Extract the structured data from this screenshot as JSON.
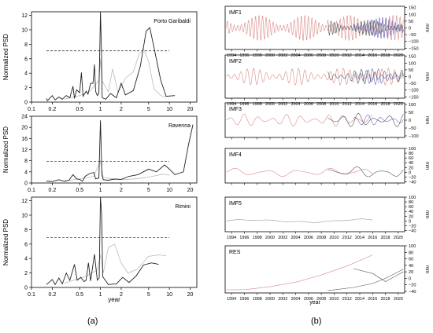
{
  "labels": {
    "a": "(a)",
    "b": "(b)"
  },
  "left": {
    "xlabel": "year",
    "ylabel": "Normalized PSD",
    "x_tick_labels": [
      "0.1",
      "0.2",
      "0.5",
      "1",
      "2",
      "5",
      "10",
      "20"
    ],
    "x_tick_values": [
      0.1,
      0.2,
      0.5,
      1,
      2,
      5,
      10,
      20
    ],
    "xlim": [
      0.1,
      25
    ],
    "panels": [
      {
        "site": "Porto Garibaldi",
        "ylim": [
          0,
          12.5
        ],
        "y_tick_values": [
          0,
          2,
          4,
          6,
          8,
          10,
          12
        ],
        "y_tick_labels": [
          "0",
          "2",
          "4",
          "6",
          "8",
          "10",
          "12"
        ],
        "threshold": 7.1,
        "dark": [
          [
            0.165,
            0.5
          ],
          [
            0.17,
            0.2
          ],
          [
            0.2,
            0.9
          ],
          [
            0.22,
            0.3
          ],
          [
            0.25,
            0.7
          ],
          [
            0.28,
            0.4
          ],
          [
            0.32,
            0.9
          ],
          [
            0.36,
            0.6
          ],
          [
            0.4,
            2.2
          ],
          [
            0.42,
            0.5
          ],
          [
            0.45,
            1.7
          ],
          [
            0.5,
            1.3
          ],
          [
            0.53,
            4.1
          ],
          [
            0.56,
            0.8
          ],
          [
            0.62,
            1.5
          ],
          [
            0.66,
            1.1
          ],
          [
            0.72,
            2.6
          ],
          [
            0.78,
            2.6
          ],
          [
            0.82,
            5.2
          ],
          [
            0.85,
            1.5
          ],
          [
            0.9,
            0.9
          ],
          [
            0.95,
            1.2
          ],
          [
            0.98,
            7.5
          ],
          [
            1.0,
            12.5
          ],
          [
            1.03,
            8.0
          ],
          [
            1.06,
            0.6
          ],
          [
            1.2,
            0.4
          ],
          [
            1.4,
            1.2
          ],
          [
            1.7,
            0.6
          ],
          [
            2.0,
            2.6
          ],
          [
            2.3,
            1.0
          ],
          [
            3.0,
            1.6
          ],
          [
            3.8,
            5.0
          ],
          [
            4.6,
            9.8
          ],
          [
            5.2,
            10.3
          ],
          [
            6.0,
            7.5
          ],
          [
            7.5,
            3.0
          ],
          [
            9.0,
            0.8
          ],
          [
            12,
            0.9
          ]
        ],
        "light": [
          [
            0.3,
            0.4
          ],
          [
            0.5,
            0.9
          ],
          [
            0.7,
            1.5
          ],
          [
            0.95,
            3.0
          ],
          [
            1.0,
            6.0
          ],
          [
            1.05,
            3.0
          ],
          [
            1.3,
            1.4
          ],
          [
            1.5,
            4.6
          ],
          [
            1.8,
            1.3
          ],
          [
            2.3,
            3.3
          ],
          [
            3.0,
            4.2
          ],
          [
            3.6,
            6.5
          ],
          [
            4.2,
            7.4
          ],
          [
            5.0,
            5.6
          ],
          [
            6.0,
            1.8
          ],
          [
            7.5,
            0.9
          ],
          [
            9.0,
            0.7
          ]
        ]
      },
      {
        "site": "Ravenna",
        "ylim": [
          0,
          24
        ],
        "y_tick_values": [
          0,
          4,
          8,
          12,
          16,
          20,
          24
        ],
        "y_tick_labels": [
          "0",
          "4",
          "8",
          "12",
          "16",
          "20",
          "24"
        ],
        "threshold": 7.8,
        "dark": [
          [
            0.165,
            0.7
          ],
          [
            0.2,
            0.5
          ],
          [
            0.25,
            1.2
          ],
          [
            0.3,
            0.6
          ],
          [
            0.35,
            1.0
          ],
          [
            0.4,
            3.0
          ],
          [
            0.45,
            1.5
          ],
          [
            0.5,
            1.3
          ],
          [
            0.55,
            0.6
          ],
          [
            0.6,
            2.4
          ],
          [
            0.7,
            3.4
          ],
          [
            0.8,
            3.8
          ],
          [
            0.85,
            1.5
          ],
          [
            0.95,
            1.8
          ],
          [
            1.0,
            22.5
          ],
          [
            1.05,
            3.0
          ],
          [
            1.1,
            1.2
          ],
          [
            1.3,
            1.0
          ],
          [
            1.6,
            1.4
          ],
          [
            2.0,
            1.3
          ],
          [
            2.6,
            2.4
          ],
          [
            3.5,
            3.0
          ],
          [
            5.0,
            5.0
          ],
          [
            6.5,
            4.0
          ],
          [
            8.5,
            6.5
          ],
          [
            10,
            5.0
          ],
          [
            12,
            3.0
          ],
          [
            16,
            4.0
          ],
          [
            19,
            14
          ],
          [
            22,
            21
          ]
        ],
        "light": [
          [
            0.3,
            0.8
          ],
          [
            0.5,
            1.4
          ],
          [
            0.8,
            2.4
          ],
          [
            1.0,
            8.0
          ],
          [
            1.1,
            2.0
          ],
          [
            1.5,
            1.5
          ],
          [
            2.2,
            1.2
          ],
          [
            3.5,
            1.6
          ],
          [
            5.5,
            2.3
          ],
          [
            8.0,
            3.2
          ],
          [
            10,
            2.8
          ]
        ]
      },
      {
        "site": "Rimini",
        "ylim": [
          0,
          12.5
        ],
        "y_tick_values": [
          0,
          2,
          4,
          6,
          8,
          10,
          12
        ],
        "y_tick_labels": [
          "0",
          "2",
          "4",
          "6",
          "8",
          "10",
          "12"
        ],
        "threshold": 6.9,
        "dark": [
          [
            0.165,
            0.4
          ],
          [
            0.2,
            1.1
          ],
          [
            0.22,
            0.4
          ],
          [
            0.25,
            1.3
          ],
          [
            0.28,
            0.5
          ],
          [
            0.32,
            2.0
          ],
          [
            0.36,
            1.0
          ],
          [
            0.42,
            3.2
          ],
          [
            0.46,
            1.0
          ],
          [
            0.52,
            1.4
          ],
          [
            0.58,
            0.8
          ],
          [
            0.62,
            1.0
          ],
          [
            0.67,
            3.4
          ],
          [
            0.72,
            0.9
          ],
          [
            0.82,
            4.6
          ],
          [
            0.9,
            1.0
          ],
          [
            0.96,
            1.3
          ],
          [
            1.0,
            12.5
          ],
          [
            1.04,
            10.0
          ],
          [
            1.08,
            1.5
          ],
          [
            1.3,
            0.4
          ],
          [
            1.7,
            0.5
          ],
          [
            2.1,
            1.4
          ],
          [
            2.6,
            0.7
          ],
          [
            3.3,
            1.6
          ],
          [
            4.2,
            3.1
          ],
          [
            5.5,
            3.4
          ],
          [
            7.0,
            3.2
          ]
        ],
        "light": [
          [
            0.3,
            0.6
          ],
          [
            0.6,
            1.5
          ],
          [
            0.9,
            2.4
          ],
          [
            1.0,
            4.5
          ],
          [
            1.1,
            2.0
          ],
          [
            1.3,
            5.5
          ],
          [
            1.6,
            6.0
          ],
          [
            2.0,
            3.4
          ],
          [
            2.5,
            2.0
          ],
          [
            3.4,
            2.5
          ],
          [
            5.0,
            4.3
          ],
          [
            7.0,
            4.5
          ],
          [
            9.0,
            4.4
          ]
        ]
      }
    ]
  },
  "right": {
    "xlabel": "year",
    "ylabel": "mm",
    "xlim": [
      1993,
      2021
    ],
    "x_tick_values": [
      1994,
      1996,
      1998,
      2000,
      2002,
      2004,
      2006,
      2008,
      2010,
      2012,
      2014,
      2016,
      2018,
      2020
    ],
    "x_tick_labels": [
      "1994",
      "1996",
      "1998",
      "2000",
      "2002",
      "2004",
      "2006",
      "2008",
      "2010",
      "2012",
      "2014",
      "2016",
      "2018",
      "2020"
    ],
    "panels": [
      {
        "name": "IMF1",
        "ylim": [
          -160,
          160
        ],
        "y_tick_values": [
          150,
          100,
          50,
          0,
          -50,
          -100,
          -150
        ],
        "y_tick_labels": [
          "150",
          "100",
          "50",
          "0",
          "−50",
          "−100",
          "−150"
        ],
        "show_dates": true,
        "series": [
          {
            "color": "#d98a8a",
            "kind": "osc",
            "x0": 1993.2,
            "x1": 2020.8,
            "amp": 95,
            "period": 0.55
          },
          {
            "color": "#6a6ac8",
            "kind": "osc",
            "x0": 2013,
            "x1": 2020.8,
            "amp": 80,
            "period": 0.5
          },
          {
            "color": "#555555",
            "kind": "osc",
            "x0": 2009,
            "x1": 2020.8,
            "amp": 60,
            "period": 0.52
          }
        ]
      },
      {
        "name": "IMF2",
        "ylim": [
          -160,
          160
        ],
        "y_tick_values": [
          150,
          100,
          50,
          0,
          -50,
          -100,
          -150
        ],
        "y_tick_labels": [
          "150",
          "100",
          "50",
          "0",
          "−50",
          "−100",
          "−150"
        ],
        "show_dates": true,
        "series": [
          {
            "color": "#d98a8a",
            "kind": "osc",
            "x0": 1993.2,
            "x1": 2020.8,
            "amp": 65,
            "period": 1.0
          },
          {
            "color": "#6a6ac8",
            "kind": "osc",
            "x0": 2013,
            "x1": 2020.8,
            "amp": 60,
            "period": 0.95
          },
          {
            "color": "#555555",
            "kind": "osc",
            "x0": 2009,
            "x1": 2020.8,
            "amp": 55,
            "period": 1.05
          }
        ]
      },
      {
        "name": "IMF3",
        "ylim": [
          -110,
          110
        ],
        "y_tick_values": [
          100,
          50,
          0,
          -50,
          -100
        ],
        "y_tick_labels": [
          "100",
          "50",
          "0",
          "−50",
          "−100"
        ],
        "show_dates": false,
        "series": [
          {
            "color": "#d98a8a",
            "kind": "osc",
            "x0": 1993.2,
            "x1": 2016,
            "amp": 40,
            "period": 2.2
          },
          {
            "color": "#6a6ac8",
            "kind": "osc",
            "x0": 2013,
            "x1": 2020.8,
            "amp": 35,
            "period": 2.0
          },
          {
            "color": "#555555",
            "kind": "osc",
            "x0": 2009,
            "x1": 2020.8,
            "amp": 45,
            "period": 2.4
          }
        ]
      },
      {
        "name": "IMF4",
        "ylim": [
          -45,
          100
        ],
        "y_tick_values": [
          100,
          80,
          60,
          40,
          20,
          0,
          -20,
          -40
        ],
        "y_tick_labels": [
          "100",
          "80",
          "60",
          "40",
          "20",
          "0",
          "−20",
          "−40"
        ],
        "show_dates": false,
        "series": [
          {
            "color": "#d98a8a",
            "kind": "osc",
            "x0": 1993.2,
            "x1": 2016,
            "amp": 18,
            "period": 5.0
          },
          {
            "color": "#555555",
            "kind": "osc",
            "x0": 2009,
            "x1": 2020.8,
            "amp": 25,
            "period": 4.0
          }
        ]
      },
      {
        "name": "IMF5",
        "ylim": [
          -45,
          100
        ],
        "y_tick_values": [
          100,
          80,
          60,
          40,
          20,
          0,
          -20,
          -40
        ],
        "y_tick_labels": [
          "100",
          "80",
          "60",
          "40",
          "20",
          "0",
          "−20",
          "−40"
        ],
        "show_dates": true,
        "series": [
          {
            "color": "#999999",
            "kind": "osc",
            "x0": 1993.2,
            "x1": 2016,
            "amp": 10,
            "period": 16
          }
        ]
      },
      {
        "name": "RES",
        "ylim": [
          -45,
          100
        ],
        "y_tick_values": [
          100,
          80,
          60,
          40,
          20,
          0,
          -20,
          -40
        ],
        "y_tick_labels": [
          "100",
          "80",
          "60",
          "40",
          "20",
          "0",
          "−20",
          "−40"
        ],
        "show_dates": true,
        "series": [
          {
            "color": "#d98a8a",
            "kind": "pts",
            "points": [
              [
                1993.2,
                -35
              ],
              [
                1996,
                -35
              ],
              [
                2000,
                -26
              ],
              [
                2004,
                -12
              ],
              [
                2008,
                10
              ],
              [
                2012,
                38
              ],
              [
                2016,
                72
              ]
            ]
          },
          {
            "color": "#555555",
            "kind": "pts",
            "points": [
              [
                2009,
                -38
              ],
              [
                2013,
                -28
              ],
              [
                2016,
                -16
              ],
              [
                2018,
                0
              ],
              [
                2020.8,
                28
              ]
            ]
          },
          {
            "color": "#555555",
            "kind": "pts",
            "points": [
              [
                2013,
                30
              ],
              [
                2016,
                15
              ],
              [
                2018,
                -10
              ],
              [
                2020.8,
                20
              ]
            ]
          }
        ]
      }
    ]
  },
  "chart_data": [
    {
      "type": "line",
      "title": "Porto Garibaldi",
      "xlabel": "year",
      "ylabel": "Normalized PSD",
      "x_scale": "log",
      "xlim": [
        0.1,
        25
      ],
      "ylim": [
        0,
        12.5
      ],
      "threshold_dashed": 7.1
    },
    {
      "type": "line",
      "title": "Ravenna",
      "xlabel": "year",
      "ylabel": "Normalized PSD",
      "x_scale": "log",
      "xlim": [
        0.1,
        25
      ],
      "ylim": [
        0,
        24
      ],
      "threshold_dashed": 7.8
    },
    {
      "type": "line",
      "title": "Rimini",
      "xlabel": "year",
      "ylabel": "Normalized PSD",
      "x_scale": "log",
      "xlim": [
        0.1,
        25
      ],
      "ylim": [
        0,
        12.5
      ],
      "threshold_dashed": 6.9
    },
    {
      "type": "line",
      "title": "IMF1",
      "xlabel": "year",
      "ylabel": "mm",
      "xlim": [
        1993,
        2021
      ],
      "ylim": [
        -150,
        150
      ]
    },
    {
      "type": "line",
      "title": "IMF2",
      "xlabel": "year",
      "ylabel": "mm",
      "xlim": [
        1993,
        2021
      ],
      "ylim": [
        -150,
        150
      ]
    },
    {
      "type": "line",
      "title": "IMF3",
      "xlabel": "year",
      "ylabel": "mm",
      "xlim": [
        1993,
        2021
      ],
      "ylim": [
        -100,
        100
      ]
    },
    {
      "type": "line",
      "title": "IMF4",
      "xlabel": "year",
      "ylabel": "mm",
      "xlim": [
        1993,
        2021
      ],
      "ylim": [
        -40,
        100
      ]
    },
    {
      "type": "line",
      "title": "IMF5",
      "xlabel": "year",
      "ylabel": "mm",
      "xlim": [
        1993,
        2021
      ],
      "ylim": [
        -40,
        100
      ]
    },
    {
      "type": "line",
      "title": "RES",
      "xlabel": "year",
      "ylabel": "mm",
      "xlim": [
        1993,
        2021
      ],
      "ylim": [
        -40,
        100
      ]
    }
  ]
}
